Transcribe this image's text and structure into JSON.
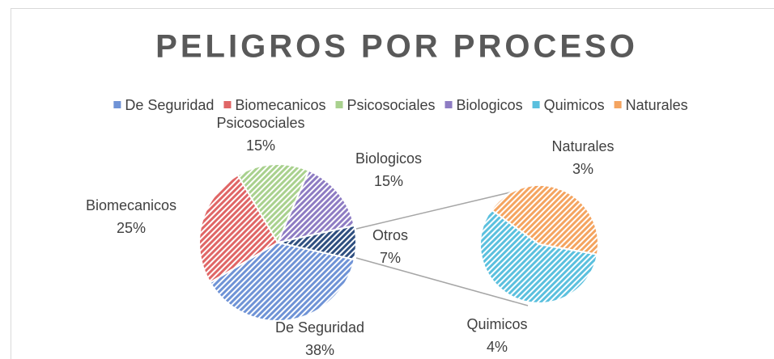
{
  "chart_data": {
    "type": "pie-of-pie",
    "title": "PELIGROS POR PROCESO",
    "categories": [
      "De Seguridad",
      "Biomecanicos",
      "Psicosociales",
      "Biologicos",
      "Quimicos",
      "Naturales"
    ],
    "values": [
      38,
      25,
      15,
      15,
      4,
      3
    ],
    "value_labels": [
      "38%",
      "25%",
      "15%",
      "15%",
      "4%",
      "3%"
    ],
    "colors": [
      "#6f93d6",
      "#e06666",
      "#a9d18e",
      "#8e7cc3",
      "#5bc0de",
      "#f4a460"
    ],
    "other_label": "Otros",
    "other_value": 7,
    "other_value_label": "7%",
    "other_color": "#2f4f80",
    "legend": "top"
  }
}
